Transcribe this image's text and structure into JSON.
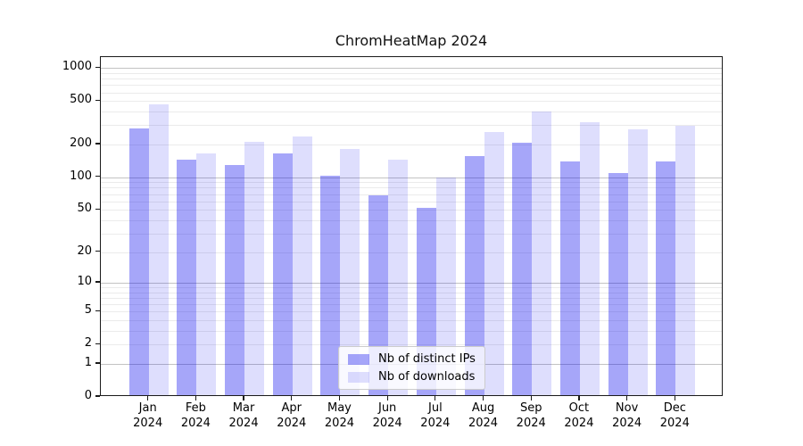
{
  "figure": {
    "background": "#ffffff"
  },
  "chart_data": {
    "type": "bar",
    "title": "ChromHeatMap 2024",
    "categories": [
      "Jan",
      "Feb",
      "Mar",
      "Apr",
      "May",
      "Jun",
      "Jul",
      "Aug",
      "Sep",
      "Oct",
      "Nov",
      "Dec"
    ],
    "category_year": "2024",
    "series": [
      {
        "name": "Nb of distinct IPs",
        "color": "#0000ee",
        "alpha": 0.35,
        "values": [
          270,
          140,
          125,
          160,
          100,
          65,
          50,
          150,
          200,
          135,
          105,
          135
        ]
      },
      {
        "name": "Nb of downloads",
        "color": "#0000ee",
        "alpha": 0.13,
        "values": [
          445,
          160,
          205,
          230,
          175,
          140,
          95,
          250,
          390,
          310,
          265,
          285
        ]
      }
    ],
    "xlabel": "",
    "ylabel": "",
    "y_scale": "log1p",
    "y_ticks": [
      0,
      1,
      2,
      5,
      10,
      20,
      50,
      100,
      200,
      500,
      1000
    ],
    "y_max": 1260,
    "major_gridlines": [
      1,
      10,
      100,
      1000
    ],
    "minor_grid_decades": [
      1,
      10,
      100
    ],
    "grid": true,
    "legend_position": "lower center"
  },
  "colors": {
    "major_grid": "#c3c3c3",
    "minor_grid": "#ebebeb",
    "spine": "#1a1a1a",
    "text": "#000000",
    "legend_border": "#cccccc",
    "legend_bg": "#ffffff"
  }
}
